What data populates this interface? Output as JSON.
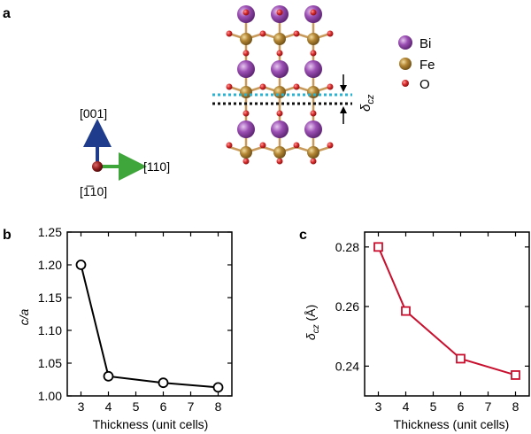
{
  "panels": {
    "a": {
      "letter": "a"
    },
    "b": {
      "letter": "b"
    },
    "c": {
      "letter": "c"
    }
  },
  "axes_directions": {
    "up": "[001]",
    "right": "[110]",
    "out": "[1̅10]"
  },
  "legend": [
    {
      "label": "Bi",
      "color": "#8e47a3"
    },
    {
      "label": "Fe",
      "color": "#a67c2d"
    },
    {
      "label": "O",
      "color": "#cc2222"
    }
  ],
  "structure_annotation": "δ",
  "structure_annotation_sub": "cz",
  "colors": {
    "plane_top": "#27b3d3",
    "plane_bottom": "#111111",
    "arrow_up": "#1f3b8c",
    "arrow_right": "#3fa63c",
    "origin": "#8b1a1a",
    "bond": "#c89a5c",
    "series_b": "#000000",
    "series_c": "#c8102e"
  },
  "chart_data": [
    {
      "type": "line",
      "panel": "b",
      "x": [
        3,
        4,
        6,
        8
      ],
      "y": [
        1.2,
        1.03,
        1.02,
        1.013
      ],
      "xlabel": "Thickness (unit cells)",
      "ylabel": "c/a",
      "xlim": [
        2.5,
        8.5
      ],
      "ylim": [
        1.0,
        1.25
      ],
      "xticks": [
        3,
        4,
        5,
        6,
        7,
        8
      ],
      "yticks": [
        "1.00",
        "1.05",
        "1.10",
        "1.15",
        "1.20",
        "1.25"
      ],
      "marker": "circle"
    },
    {
      "type": "line",
      "panel": "c",
      "x": [
        3,
        4,
        6,
        8
      ],
      "y": [
        0.28,
        0.2585,
        0.2425,
        0.237
      ],
      "xlabel": "Thickness (unit cells)",
      "ylabel_main": "δ",
      "ylabel_sub": "cz",
      "ylabel_unit": " (Å)",
      "xlim": [
        2.5,
        8.5
      ],
      "ylim": [
        0.23,
        0.285
      ],
      "xticks": [
        3,
        4,
        5,
        6,
        7,
        8
      ],
      "yticks": [
        "0.24",
        "0.26",
        "0.28"
      ],
      "marker": "square"
    }
  ]
}
